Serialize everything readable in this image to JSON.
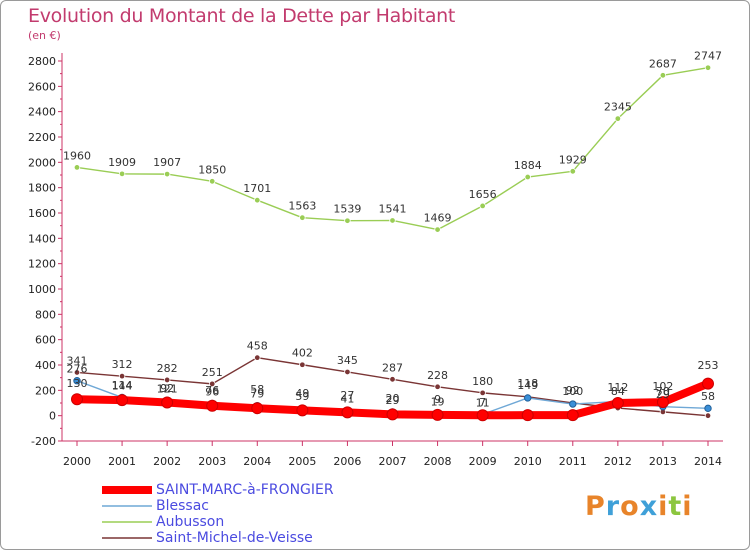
{
  "title": "Evolution du Montant de la Dette par Habitant",
  "unit_label": "(en €)",
  "logo": {
    "letters": [
      "P",
      "r",
      "o",
      "x",
      "i",
      "t",
      "i"
    ],
    "colors": [
      "#e8842a",
      "#3fa0d8",
      "#e8842a",
      "#3fa0d8",
      "#e8842a",
      "#8cc63f",
      "#e8842a"
    ]
  },
  "chart_data": {
    "type": "line",
    "title": "Evolution du Montant de la Dette par Habitant",
    "ylabel": "(en €)",
    "xlabel": "",
    "ylim": [
      -200,
      2800
    ],
    "yticks": [
      -200,
      0,
      200,
      400,
      600,
      800,
      1000,
      1200,
      1400,
      1600,
      1800,
      2000,
      2200,
      2400,
      2600,
      2800
    ],
    "x": [
      "2000",
      "2001",
      "2002",
      "2003",
      "2004",
      "2005",
      "2006",
      "2007",
      "2008",
      "2009",
      "2010",
      "2011",
      "2012",
      "2013",
      "2014"
    ],
    "grid": false,
    "legend_position": "bottom-left",
    "series": [
      {
        "name": "SAINT-MARC-à-FRONGIER",
        "color": "#ff0000",
        "values": [
          130,
          123,
          104,
          78,
          59,
          42,
          26,
          10,
          6,
          3,
          4,
          4,
          100,
          107,
          253
        ],
        "labels": []
      },
      {
        "name": "Blessac",
        "color": "#6fa8d6",
        "values": [
          276,
          144,
          121,
          96,
          79,
          59,
          41,
          29,
          19,
          11,
          140,
          92,
          112,
          71,
          58
        ],
        "labels": [
          "276",
          "144",
          "121",
          "96",
          "79",
          "59",
          "41",
          "29",
          "19",
          "11",
          "",
          "",
          "",
          "",
          ""
        ]
      },
      {
        "name": "Aubusson",
        "color": "#9acd55",
        "values": [
          1960,
          1909,
          1907,
          1850,
          1701,
          1563,
          1539,
          1541,
          1469,
          1656,
          1884,
          1929,
          2345,
          2687,
          2747
        ],
        "labels": [
          "1960",
          "1909",
          "1907",
          "1850",
          "1701",
          "1563",
          "1539",
          "1541",
          "1469",
          "1656",
          "1884",
          "1929",
          "2345",
          "2687",
          "2747"
        ]
      },
      {
        "name": "Saint-Michel-de-Veisse",
        "color": "#7a3535",
        "values": [
          341,
          312,
          282,
          251,
          458,
          402,
          345,
          287,
          228,
          180,
          149,
          100,
          60,
          30,
          0
        ],
        "labels": [
          "341",
          "312",
          "282",
          "251",
          "458",
          "402",
          "345",
          "287",
          "228",
          "180",
          "149",
          "100",
          "",
          "",
          ""
        ]
      }
    ],
    "extra_labels": [
      {
        "x": "2000",
        "text": "130"
      },
      {
        "x": "2001",
        "text": "114"
      },
      {
        "x": "2002",
        "text": "92"
      },
      {
        "x": "2003",
        "text": "76"
      },
      {
        "x": "2004",
        "text": "58"
      },
      {
        "x": "2005",
        "text": "49"
      },
      {
        "x": "2006",
        "text": "27"
      },
      {
        "x": "2007",
        "text": "20"
      },
      {
        "x": "2008",
        "text": "9"
      },
      {
        "x": "2009",
        "text": "7"
      },
      {
        "x": "2010",
        "text": "118"
      },
      {
        "x": "2011",
        "text": "92"
      },
      {
        "x": "2012",
        "text": "112"
      },
      {
        "x": "2012",
        "text": "84"
      },
      {
        "x": "2013",
        "text": "102"
      },
      {
        "x": "2013",
        "text": "70"
      },
      {
        "x": "2013",
        "text": "29"
      },
      {
        "x": "2014",
        "text": "253"
      },
      {
        "x": "2014",
        "text": "58"
      }
    ]
  }
}
